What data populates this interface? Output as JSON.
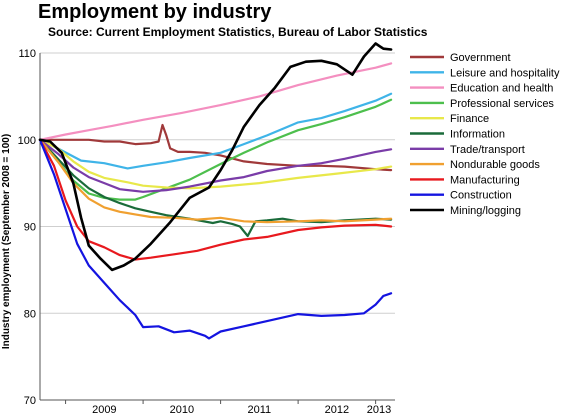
{
  "chart_data": {
    "type": "line",
    "title": "Employment by industry",
    "subtitle": "Source: Current Employment Statistics, Bureau of Labor Statistics",
    "ylabel": "Industry employment (September 2008 = 100)",
    "xlabel": "",
    "ylim": [
      70,
      110
    ],
    "yticks": [
      70,
      80,
      90,
      100,
      110
    ],
    "xlim": [
      2008.67,
      2013.25
    ],
    "xticks": [
      {
        "label": "2009",
        "x": 2009.0
      },
      {
        "label": "2010",
        "x": 2010.0
      },
      {
        "label": "2011",
        "x": 2011.0
      },
      {
        "label": "2012",
        "x": 2012.0
      },
      {
        "label": "2013",
        "x": 2013.0
      }
    ],
    "grid": "horizontal",
    "legend": "right",
    "series": [
      {
        "name": "Government",
        "color": "#a0393a",
        "x": [
          2008.67,
          2008.9,
          2009.1,
          2009.3,
          2009.5,
          2009.7,
          2009.9,
          2010.1,
          2010.2,
          2010.25,
          2010.3,
          2010.35,
          2010.45,
          2010.6,
          2010.8,
          2011.0,
          2011.3,
          2011.6,
          2012.0,
          2012.3,
          2012.6,
          2013.0,
          2013.2
        ],
        "values": [
          100,
          100,
          100,
          100,
          99.8,
          99.8,
          99.5,
          99.6,
          99.8,
          101.7,
          100.5,
          99,
          98.6,
          98.6,
          98.5,
          98.2,
          97.5,
          97.2,
          97,
          97,
          96.9,
          96.6,
          96.5
        ]
      },
      {
        "name": "Leisure and hospitality",
        "color": "#3fb4e8",
        "x": [
          2008.67,
          2008.9,
          2009.2,
          2009.5,
          2009.8,
          2010.0,
          2010.3,
          2010.6,
          2011.0,
          2011.3,
          2011.6,
          2012.0,
          2012.3,
          2012.6,
          2013.0,
          2013.2
        ],
        "values": [
          100,
          99,
          97.6,
          97.3,
          96.7,
          97,
          97.4,
          97.9,
          98.5,
          99.5,
          100.5,
          102,
          102.5,
          103.3,
          104.5,
          105.3
        ]
      },
      {
        "name": "Education and health",
        "color": "#f48fc0",
        "x": [
          2008.67,
          2009.0,
          2009.3,
          2009.6,
          2010.0,
          2010.5,
          2011.0,
          2011.5,
          2012.0,
          2012.5,
          2013.0,
          2013.2
        ],
        "values": [
          100,
          100.6,
          101.1,
          101.6,
          102.3,
          103.1,
          104,
          105,
          106.3,
          107.4,
          108.3,
          108.8
        ]
      },
      {
        "name": "Professional services",
        "color": "#4dbf4d",
        "x": [
          2008.67,
          2008.9,
          2009.1,
          2009.3,
          2009.5,
          2009.7,
          2009.9,
          2010.0,
          2010.3,
          2010.6,
          2011.0,
          2011.3,
          2011.6,
          2012.0,
          2012.3,
          2012.6,
          2013.0,
          2013.2
        ],
        "values": [
          100,
          97.5,
          95.3,
          93.8,
          93.3,
          93.1,
          93.1,
          93.4,
          94.4,
          95.4,
          97.2,
          98.5,
          99.7,
          101.1,
          101.8,
          102.6,
          103.8,
          104.6
        ]
      },
      {
        "name": "Finance",
        "color": "#e8e84a",
        "x": [
          2008.67,
          2008.9,
          2009.1,
          2009.3,
          2009.5,
          2009.8,
          2010.0,
          2010.3,
          2010.6,
          2011.0,
          2011.5,
          2012.0,
          2012.5,
          2013.0,
          2013.2
        ],
        "values": [
          100,
          99,
          97.5,
          96.3,
          95.6,
          95.1,
          94.7,
          94.5,
          94.4,
          94.6,
          95,
          95.6,
          96.1,
          96.6,
          96.9
        ]
      },
      {
        "name": "Information",
        "color": "#1a6b3a",
        "x": [
          2008.67,
          2008.9,
          2009.1,
          2009.3,
          2009.5,
          2009.7,
          2009.9,
          2010.1,
          2010.3,
          2010.6,
          2010.9,
          2011.0,
          2011.15,
          2011.25,
          2011.35,
          2011.45,
          2011.6,
          2011.8,
          2012.0,
          2012.3,
          2012.6,
          2013.0,
          2013.2
        ],
        "values": [
          100,
          97.8,
          95.9,
          94.4,
          93.4,
          92.7,
          92.1,
          91.7,
          91.3,
          90.9,
          90.4,
          90.6,
          90.3,
          90,
          88.9,
          90.6,
          90.7,
          90.9,
          90.6,
          90.5,
          90.7,
          90.9,
          90.8
        ]
      },
      {
        "name": "Trade/transport",
        "color": "#7a3ca8",
        "x": [
          2008.67,
          2008.9,
          2009.1,
          2009.3,
          2009.5,
          2009.7,
          2010.0,
          2010.3,
          2010.6,
          2011.0,
          2011.3,
          2011.6,
          2012.0,
          2012.3,
          2012.6,
          2013.0,
          2013.2
        ],
        "values": [
          100,
          98.4,
          96.8,
          95.7,
          95,
          94.3,
          94,
          94.2,
          94.6,
          95.3,
          95.7,
          96.4,
          97,
          97.3,
          97.8,
          98.6,
          98.9
        ]
      },
      {
        "name": "Nondurable goods",
        "color": "#f0a030",
        "x": [
          2008.67,
          2008.9,
          2009.1,
          2009.3,
          2009.5,
          2009.7,
          2009.9,
          2010.1,
          2010.4,
          2010.7,
          2011.0,
          2011.3,
          2011.6,
          2012.0,
          2012.3,
          2012.6,
          2013.0,
          2013.2
        ],
        "values": [
          100,
          97.5,
          95,
          93.2,
          92.2,
          91.7,
          91.4,
          91.1,
          91,
          90.8,
          91,
          90.6,
          90.5,
          90.6,
          90.7,
          90.6,
          90.8,
          90.9
        ]
      },
      {
        "name": "Manufacturing",
        "color": "#e8191e",
        "x": [
          2008.67,
          2008.85,
          2009.0,
          2009.15,
          2009.3,
          2009.5,
          2009.7,
          2009.9,
          2010.1,
          2010.4,
          2010.7,
          2011.0,
          2011.3,
          2011.6,
          2012.0,
          2012.3,
          2012.6,
          2013.0,
          2013.2
        ],
        "values": [
          100,
          97,
          93,
          90,
          88.3,
          87.6,
          86.7,
          86.2,
          86.4,
          86.8,
          87.2,
          87.9,
          88.5,
          88.8,
          89.6,
          89.9,
          90.1,
          90.2,
          90
        ]
      },
      {
        "name": "Construction",
        "color": "#1414e0",
        "x": [
          2008.67,
          2008.85,
          2009.0,
          2009.15,
          2009.3,
          2009.5,
          2009.7,
          2009.9,
          2010.0,
          2010.2,
          2010.4,
          2010.6,
          2010.8,
          2010.85,
          2011.0,
          2011.3,
          2011.6,
          2012.0,
          2012.3,
          2012.6,
          2012.85,
          2013.0,
          2013.1,
          2013.2
        ],
        "values": [
          100,
          96,
          92,
          88,
          85.5,
          83.5,
          81.5,
          79.8,
          78.4,
          78.5,
          77.8,
          78,
          77.4,
          77.1,
          77.9,
          78.5,
          79.1,
          79.9,
          79.7,
          79.8,
          80,
          81,
          82,
          82.3
        ]
      },
      {
        "name": "Mining/logging",
        "color": "#000000",
        "x": [
          2008.67,
          2008.8,
          2008.95,
          2009.1,
          2009.2,
          2009.3,
          2009.45,
          2009.6,
          2009.75,
          2009.9,
          2010.1,
          2010.35,
          2010.6,
          2010.85,
          2011.0,
          2011.15,
          2011.3,
          2011.5,
          2011.7,
          2011.9,
          2012.1,
          2012.3,
          2012.5,
          2012.7,
          2012.85,
          2013.0,
          2013.1,
          2013.2
        ],
        "values": [
          100,
          99.8,
          98.5,
          95,
          91,
          87.8,
          86.3,
          85,
          85.5,
          86.3,
          88,
          90.5,
          93.3,
          94.5,
          96.5,
          98.8,
          101.5,
          104,
          106,
          108.4,
          109,
          109.1,
          108.7,
          107.5,
          109.6,
          111.1,
          110.5,
          110.4
        ]
      }
    ]
  }
}
